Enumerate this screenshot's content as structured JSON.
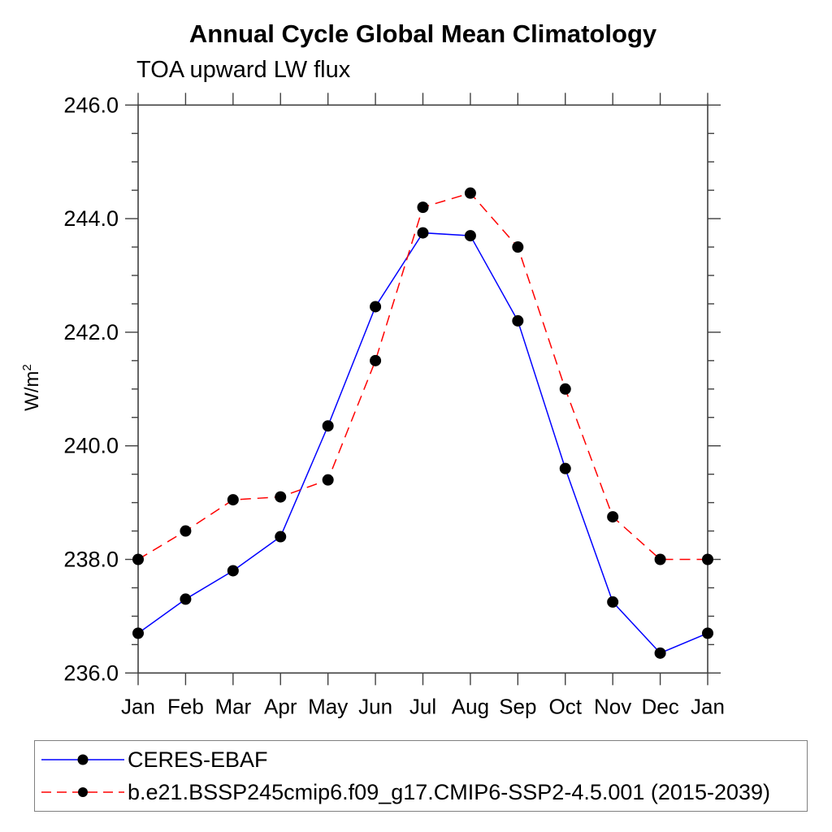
{
  "chart_data": {
    "type": "line",
    "title": "Annual Cycle Global Mean Climatology",
    "subtitle": "TOA upward LW flux",
    "ylabel_base": "W/m",
    "ylabel_exponent": "2",
    "categories": [
      "Jan",
      "Feb",
      "Mar",
      "Apr",
      "May",
      "Jun",
      "Jul",
      "Aug",
      "Sep",
      "Oct",
      "Nov",
      "Dec",
      "Jan"
    ],
    "ylim": [
      236.0,
      246.0
    ],
    "ytick_major": [
      236,
      238,
      240,
      242,
      244,
      246
    ],
    "ytick_labels": [
      "236.0",
      "238.0",
      "240.0",
      "242.0",
      "244.0",
      "246.0"
    ],
    "ytick_minor_step": 0.5,
    "grid": false,
    "legend_position": "bottom-left-box",
    "axis_color": "#404040",
    "marker_color": "#000000",
    "series": [
      {
        "name": "CERES-EBAF",
        "color": "#0000ff",
        "line_style": "solid",
        "marker": "filled-circle",
        "values": [
          236.7,
          237.3,
          237.8,
          238.4,
          240.35,
          242.45,
          243.75,
          243.7,
          242.2,
          239.6,
          237.25,
          236.35,
          236.7
        ]
      },
      {
        "name": "b.e21.BSSP245cmip6.f09_g17.CMIP6-SSP2-4.5.001 (2015-2039)",
        "color": "#ff0000",
        "line_style": "dashed",
        "marker": "filled-circle",
        "values": [
          238.0,
          238.5,
          239.05,
          239.1,
          239.4,
          241.5,
          244.2,
          244.45,
          243.5,
          241.0,
          238.75,
          238.0,
          238.0
        ]
      }
    ]
  }
}
